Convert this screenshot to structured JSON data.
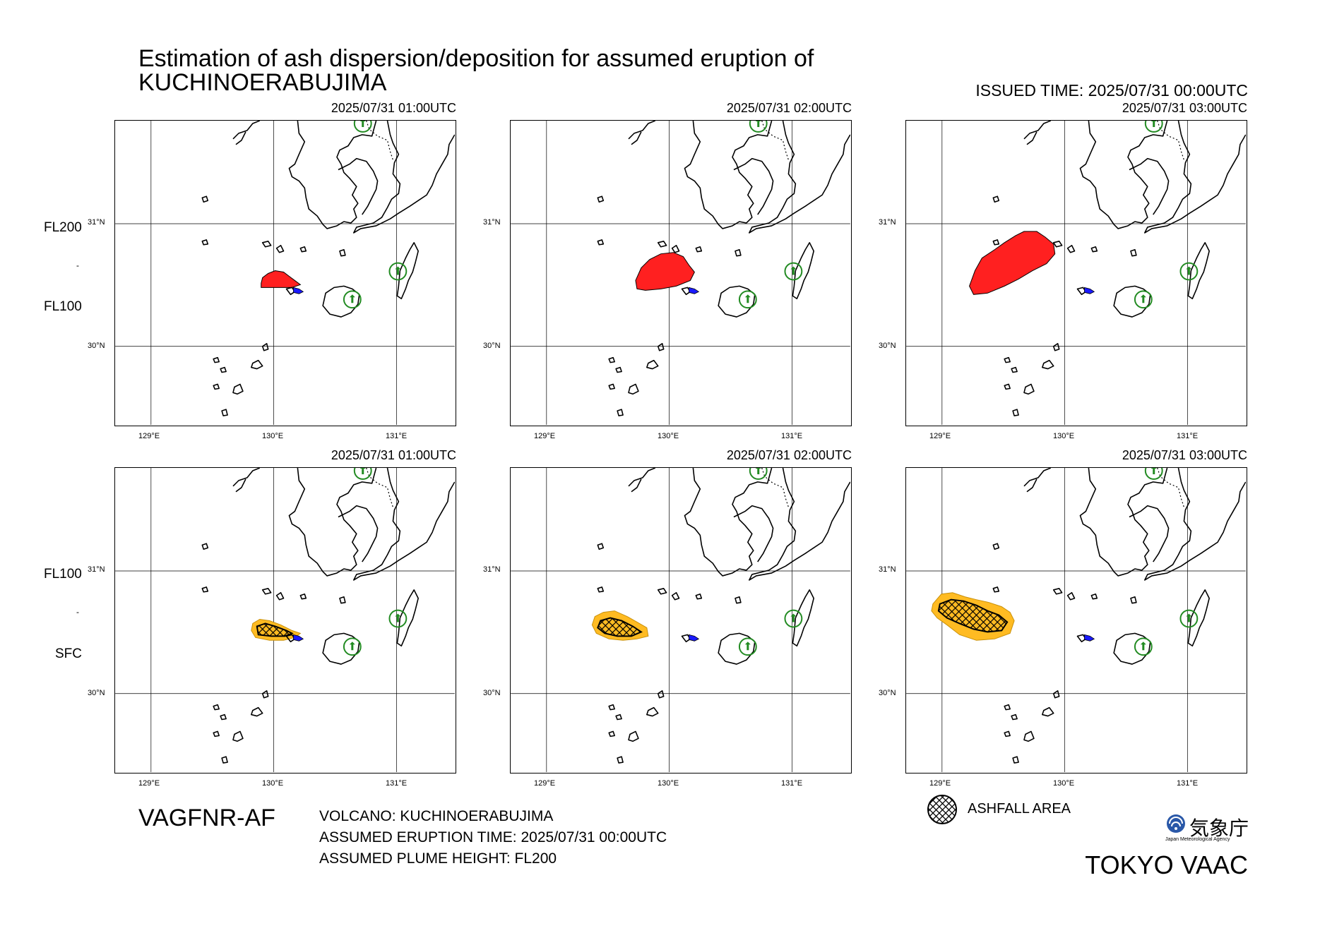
{
  "title": {
    "line1": "Estimation of ash dispersion/deposition for assumed eruption of",
    "line2": "KUCHINOERABUJIMA"
  },
  "issued_time": "ISSUED TIME: 2025/07/31 00:00UTC",
  "map": {
    "lat_labels": [
      "31°N",
      "30°N"
    ],
    "lon_labels": [
      "129°E",
      "130°E",
      "131°E"
    ]
  },
  "rows": [
    {
      "level_top": "FL200",
      "level_mid": "-",
      "level_bottom": "FL100",
      "panels": [
        {
          "time": "2025/07/31 01:00UTC"
        },
        {
          "time": "2025/07/31 02:00UTC"
        },
        {
          "time": "2025/07/31 03:00UTC"
        }
      ]
    },
    {
      "level_top": "FL100",
      "level_mid": "-",
      "level_bottom": "SFC",
      "panels": [
        {
          "time": "2025/07/31 01:00UTC"
        },
        {
          "time": "2025/07/31 02:00UTC"
        },
        {
          "time": "2025/07/31 03:00UTC"
        }
      ]
    }
  ],
  "footer": {
    "product": "VAGFNR-AF",
    "volcano": "VOLCANO: KUCHINOERABUJIMA",
    "eruption_time": "ASSUMED ERUPTION TIME: 2025/07/31 00:00UTC",
    "plume_height": "ASSUMED PLUME HEIGHT: FL200",
    "legend_ashfall": "ASHFALL AREA",
    "agency_jp": "気象庁",
    "agency_en": "Japan Meteorological Agency",
    "vaac": "TOKYO VAAC"
  },
  "colors": {
    "ash_upper": "#ff2020",
    "ash_lower": "#ffbb22",
    "volcano_marker": "#1a1aff",
    "station_circle": "#228b22"
  }
}
